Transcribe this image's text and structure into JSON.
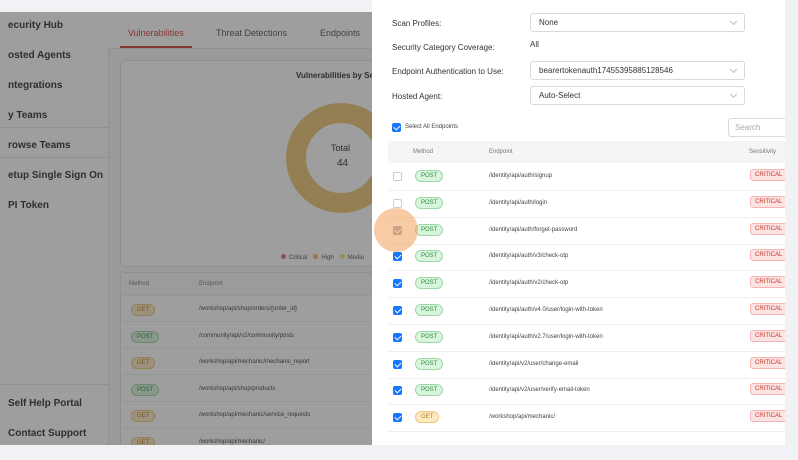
{
  "sidebar": {
    "items": [
      "ecurity Hub",
      "osted Agents",
      "ntegrations",
      "y Teams",
      "rowse Teams",
      "etup Single Sign On",
      "PI Token"
    ],
    "bottom_items": [
      "Self Help Portal",
      "Contact Support"
    ]
  },
  "main": {
    "tabs": [
      "Vulnerabilities",
      "Threat Detections",
      "Endpoints"
    ],
    "chart": {
      "title": "Vulnerabilities by Se",
      "center_label": "Total",
      "center_value": "44",
      "legend": [
        "Critical",
        "High",
        "Mediu"
      ]
    },
    "table": {
      "headers": [
        "Method",
        "Endpoint"
      ],
      "rows": [
        [
          "GET",
          "/workshop/api/shop/orders/{order_id}"
        ],
        [
          "POST",
          "/community/api/v2/community/posts"
        ],
        [
          "GET",
          "/workshop/api/mechanic/mechanic_report"
        ],
        [
          "POST",
          "/workshop/api/shop/products"
        ],
        [
          "GET",
          "/workshop/api/mechanic/service_requests"
        ],
        [
          "GET",
          "/workshop/api/mechanic/"
        ]
      ]
    }
  },
  "panel": {
    "form": [
      {
        "label": "Scan Profiles:",
        "value": "None",
        "select": true
      },
      {
        "label": "Security Category Coverage:",
        "value": "All",
        "select": false
      },
      {
        "label": "Endpoint Authentication to Use:",
        "value": "bearertokenauth17455395885128546",
        "select": true
      },
      {
        "label": "Hosted Agent:",
        "value": "Auto-Select",
        "select": true
      }
    ],
    "select_all": "Select All Endpoints",
    "search_placeholder": "Search",
    "table": {
      "headers": [
        "Method",
        "Endpoint",
        "Sensitivity"
      ],
      "rows": [
        {
          "method": "POST",
          "endpoint": "/identity/api/auth/signup",
          "sensitivity": "CRITICAL",
          "checked": false
        },
        {
          "method": "POST",
          "endpoint": "/identity/api/auth/login",
          "sensitivity": "CRITICAL",
          "checked": false
        },
        {
          "method": "POST",
          "endpoint": "/identity/api/auth/forget-password",
          "sensitivity": "CRITICAL",
          "checked": true
        },
        {
          "method": "POST",
          "endpoint": "/identity/api/auth/v3/check-otp",
          "sensitivity": "CRITICAL",
          "checked": true
        },
        {
          "method": "POST",
          "endpoint": "/identity/api/auth/v2/check-otp",
          "sensitivity": "CRITICAL",
          "checked": true
        },
        {
          "method": "POST",
          "endpoint": "/identity/api/auth/v4.0/user/login-with-token",
          "sensitivity": "CRITICAL",
          "checked": true
        },
        {
          "method": "POST",
          "endpoint": "/identity/api/auth/v2.7/user/login-with-token",
          "sensitivity": "CRITICAL",
          "checked": true
        },
        {
          "method": "POST",
          "endpoint": "/identity/api/v2/user/change-email",
          "sensitivity": "CRITICAL",
          "checked": true
        },
        {
          "method": "POST",
          "endpoint": "/identity/api/v2/user/verify-email-token",
          "sensitivity": "CRITICAL",
          "checked": true
        },
        {
          "method": "GET",
          "endpoint": "/workshop/api/mechanic/",
          "sensitivity": "CRITICAL",
          "checked": true
        }
      ]
    }
  }
}
